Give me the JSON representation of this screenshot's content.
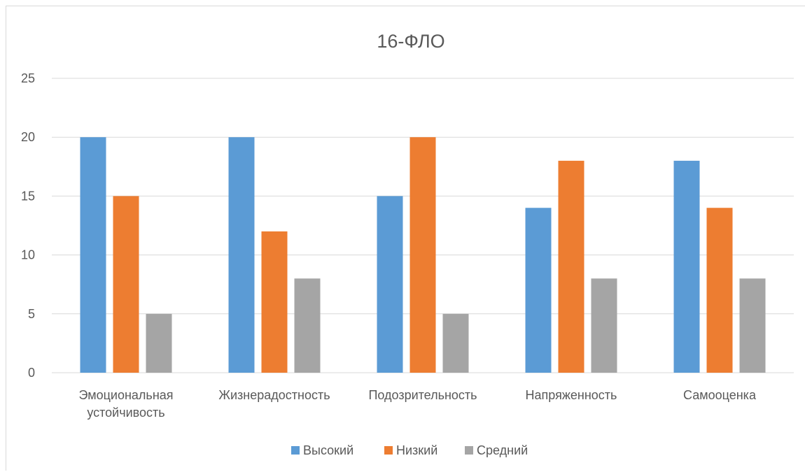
{
  "chart_data": {
    "type": "bar",
    "title": "16-ФЛО",
    "categories": [
      [
        "Эмоциональная",
        "устойчивость"
      ],
      [
        "Жизнерадостность"
      ],
      [
        "Подозрительность"
      ],
      [
        "Напряженность"
      ],
      [
        "Самооценка"
      ]
    ],
    "series": [
      {
        "name": "Высокий",
        "color": "#5b9bd5",
        "values": [
          20,
          20,
          15,
          14,
          18
        ]
      },
      {
        "name": "Низкий",
        "color": "#ed7d31",
        "values": [
          15,
          12,
          20,
          18,
          14
        ]
      },
      {
        "name": "Средний",
        "color": "#a5a5a5",
        "values": [
          5,
          8,
          5,
          8,
          8
        ]
      }
    ],
    "ylim": [
      0,
      25
    ],
    "yticks": [
      0,
      5,
      10,
      15,
      20,
      25
    ],
    "grid": true,
    "legend_position": "bottom"
  }
}
